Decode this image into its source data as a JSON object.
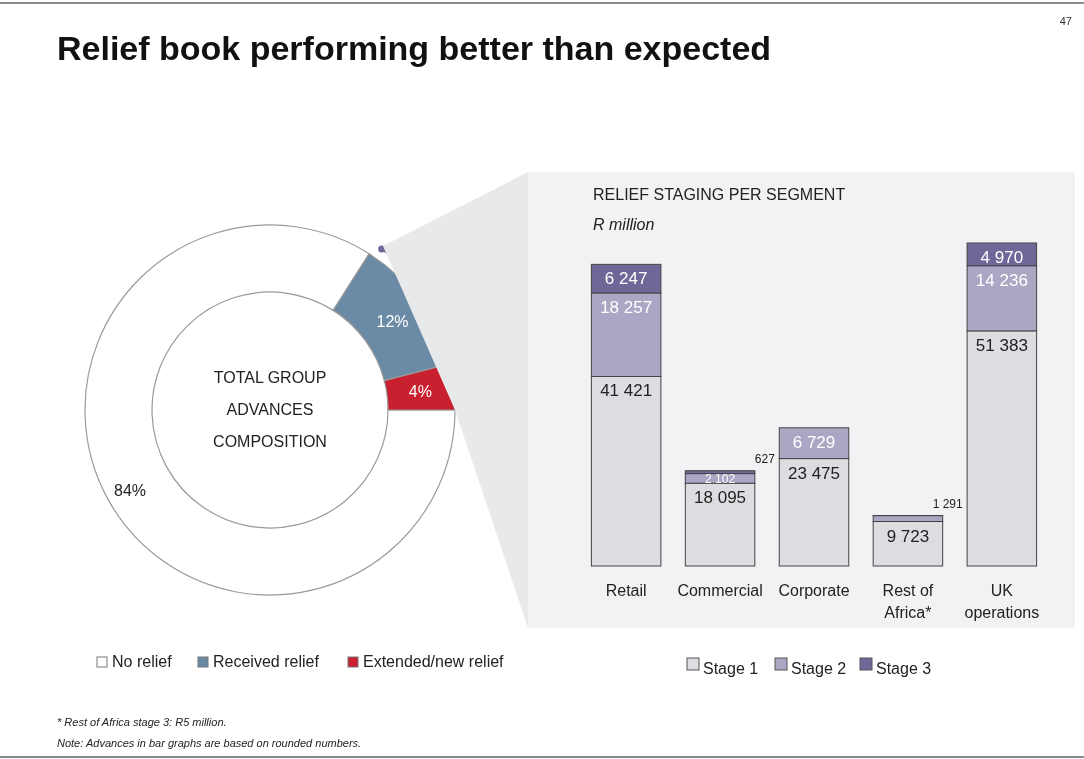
{
  "chart_data": [
    {
      "type": "donut",
      "title": "Relief book performing better than expected",
      "categories": [
        "No relief",
        "Received relief",
        "Extended/new relief"
      ],
      "values": [
        84,
        12,
        4
      ],
      "colors": [
        "#ffffff",
        "#6a8aa5",
        "#c8202f"
      ],
      "legend": "bottom",
      "value_labels": [
        "84%",
        "12%",
        "4%"
      ],
      "annotations": [
        "TOTAL GROUP ADVANCES COMPOSITION",
        "47"
      ]
    },
    {
      "type": "bar",
      "stacked": true,
      "title": "RELIEF STAGING PER SEGMENT",
      "subtitle": "R million",
      "categories": [
        "Retail",
        "Commercial",
        "Corporate",
        "Rest of Africa*",
        "UK operations"
      ],
      "legend": "bottom",
      "series": [
        {
          "name": "Stage 1",
          "color": "#dcdde0",
          "values": [
            41421,
            18095,
            23475,
            9723,
            51383
          ],
          "value_labels": [
            "41 421",
            "18 095",
            "23 475",
            "9 723",
            "51 383"
          ]
        },
        {
          "name": "Stage 2",
          "color": "#aca6c4",
          "values": [
            18257,
            2102,
            6729,
            1291,
            14236
          ],
          "value_labels": [
            "18 257",
            "2 102",
            "6 729",
            "1 291",
            "14 236"
          ]
        },
        {
          "name": "Stage 3",
          "color": "#6f6797",
          "values": [
            6247,
            627,
            null,
            5,
            4970
          ],
          "value_labels": [
            "6 247",
            "627",
            null,
            null,
            "4 970"
          ]
        }
      ],
      "annotations": [
        "* Rest of Africa stage 3: R5 million.",
        "Note: Advances in bar graphs are based on rounded numbers."
      ]
    }
  ]
}
